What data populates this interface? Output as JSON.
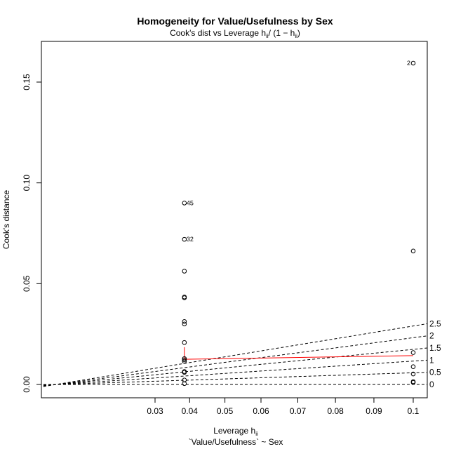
{
  "chart_data": {
    "type": "scatter",
    "title": "Homogeneity for Value/Usefulness by Sex",
    "subtitle": {
      "prefix": "Cook's dist vs Leverage  h",
      "sub1": "ii",
      "mid": "/ (1 − h",
      "sub2": "ii",
      "suffix": ")"
    },
    "xlabel": {
      "main": "Leverage  h",
      "sub": "ii"
    },
    "ylabel": "Cook's distance",
    "model_formula": "`Value/Usefulness` ~ Sex",
    "xlim": [
      0.0,
      0.1
    ],
    "ylim": [
      0.0,
      0.16
    ],
    "x_ticks": [
      "0.03",
      "0.04",
      "0.05",
      "0.06",
      "0.07",
      "0.08",
      "0.09",
      "0.1"
    ],
    "x_tick_values": [
      0.03,
      0.04,
      0.05,
      0.06,
      0.07,
      0.08,
      0.09,
      0.1
    ],
    "y_ticks": [
      "0.00",
      "0.05",
      "0.10",
      "0.15"
    ],
    "y_tick_values": [
      0.0,
      0.05,
      0.1,
      0.15
    ],
    "points": [
      {
        "x": 0.0385,
        "y": 0.09,
        "label": "45"
      },
      {
        "x": 0.0385,
        "y": 0.072,
        "label": "32"
      },
      {
        "x": 0.0385,
        "y": 0.0562,
        "label": ""
      },
      {
        "x": 0.0385,
        "y": 0.0434,
        "label": ""
      },
      {
        "x": 0.0385,
        "y": 0.043,
        "label": ""
      },
      {
        "x": 0.0385,
        "y": 0.0312,
        "label": ""
      },
      {
        "x": 0.0385,
        "y": 0.03,
        "label": ""
      },
      {
        "x": 0.0385,
        "y": 0.0208,
        "label": ""
      },
      {
        "x": 0.0385,
        "y": 0.0128,
        "label": ""
      },
      {
        "x": 0.0385,
        "y": 0.0122,
        "label": ""
      },
      {
        "x": 0.0385,
        "y": 0.0115,
        "label": ""
      },
      {
        "x": 0.0385,
        "y": 0.0064,
        "label": ""
      },
      {
        "x": 0.0385,
        "y": 0.006,
        "label": ""
      },
      {
        "x": 0.0385,
        "y": 0.0022,
        "label": ""
      },
      {
        "x": 0.0385,
        "y": 0.0004,
        "label": ""
      },
      {
        "x": 0.1,
        "y": 0.1594,
        "label": "2"
      },
      {
        "x": 0.1,
        "y": 0.0662,
        "label": ""
      },
      {
        "x": 0.1,
        "y": 0.0158,
        "label": ""
      },
      {
        "x": 0.1,
        "y": 0.0088,
        "label": ""
      },
      {
        "x": 0.1,
        "y": 0.0052,
        "label": ""
      },
      {
        "x": 0.1,
        "y": 0.0014,
        "label": ""
      },
      {
        "x": 0.1,
        "y": 0.001,
        "label": ""
      }
    ],
    "contours": [
      {
        "label": "0",
        "value": 0
      },
      {
        "label": "0.5",
        "value": 0.5
      },
      {
        "label": "1",
        "value": 1
      },
      {
        "label": "1.5",
        "value": 1.5
      },
      {
        "label": "2",
        "value": 2
      },
      {
        "label": "2.5",
        "value": 2.5
      }
    ],
    "smoother": [
      {
        "x": 0.0385,
        "y": 0.0185
      },
      {
        "x": 0.0385,
        "y": 0.0125
      },
      {
        "x": 0.1,
        "y": 0.0143
      }
    ],
    "colors": {
      "points": "#000000",
      "contours": "#000000",
      "smoother": "#ff0000"
    },
    "grid": false
  }
}
